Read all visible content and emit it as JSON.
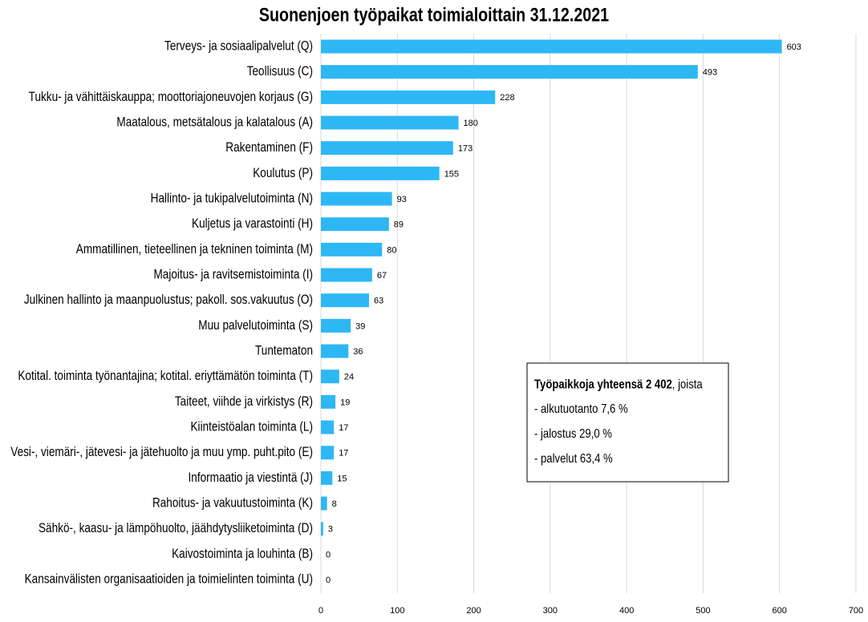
{
  "chart_data": {
    "type": "barh",
    "title": "Suonenjoen työpaikat toimialoittain 31.12.2021",
    "categories": [
      "Terveys- ja sosiaalipalvelut (Q)",
      "Teollisuus (C)",
      "Tukku- ja vähittäiskauppa; moottoriajoneuvojen korjaus (G)",
      "Maatalous, metsätalous ja kalatalous (A)",
      "Rakentaminen (F)",
      "Koulutus (P)",
      "Hallinto- ja tukipalvelutoiminta (N)",
      "Kuljetus ja varastointi (H)",
      "Ammatillinen, tieteellinen ja tekninen toiminta (M)",
      "Majoitus- ja ravitsemistoiminta (I)",
      "Julkinen hallinto ja maanpuolustus; pakoll. sos.vakuutus (O)",
      "Muu palvelutoiminta (S)",
      "Tuntematon",
      "Kotital. toiminta työnantajina; kotital. eriyttämätön toiminta (T)",
      "Taiteet, viihde ja virkistys (R)",
      "Kiinteistöalan toiminta (L)",
      "Vesi-, viemäri-, jätevesi- ja jätehuolto ja muu ymp. puht.pito (E)",
      "Informaatio ja viestintä (J)",
      "Rahoitus- ja vakuutustoiminta (K)",
      "Sähkö-, kaasu- ja lämpöhuolto, jäähdytysliiketoiminta (D)",
      "Kaivostoiminta ja louhinta (B)",
      "Kansainvälisten organisaatioiden ja toimielinten toiminta (U)"
    ],
    "values": [
      603,
      493,
      228,
      180,
      173,
      155,
      93,
      89,
      80,
      67,
      63,
      39,
      36,
      24,
      19,
      17,
      17,
      15,
      8,
      3,
      0,
      0
    ],
    "color": "#2db7f5",
    "xlim": [
      0,
      700
    ],
    "xticks": [
      0,
      100,
      200,
      300,
      400,
      500,
      600,
      700
    ],
    "grid": true,
    "annotation": {
      "heading": "Työpaikkoja yhteensä 2 402",
      "heading_suffix": ", joista",
      "lines": [
        "- alkutuotanto 7,6 %",
        "- jalostus 29,0 %",
        "- palvelut 63,4 %"
      ]
    }
  }
}
